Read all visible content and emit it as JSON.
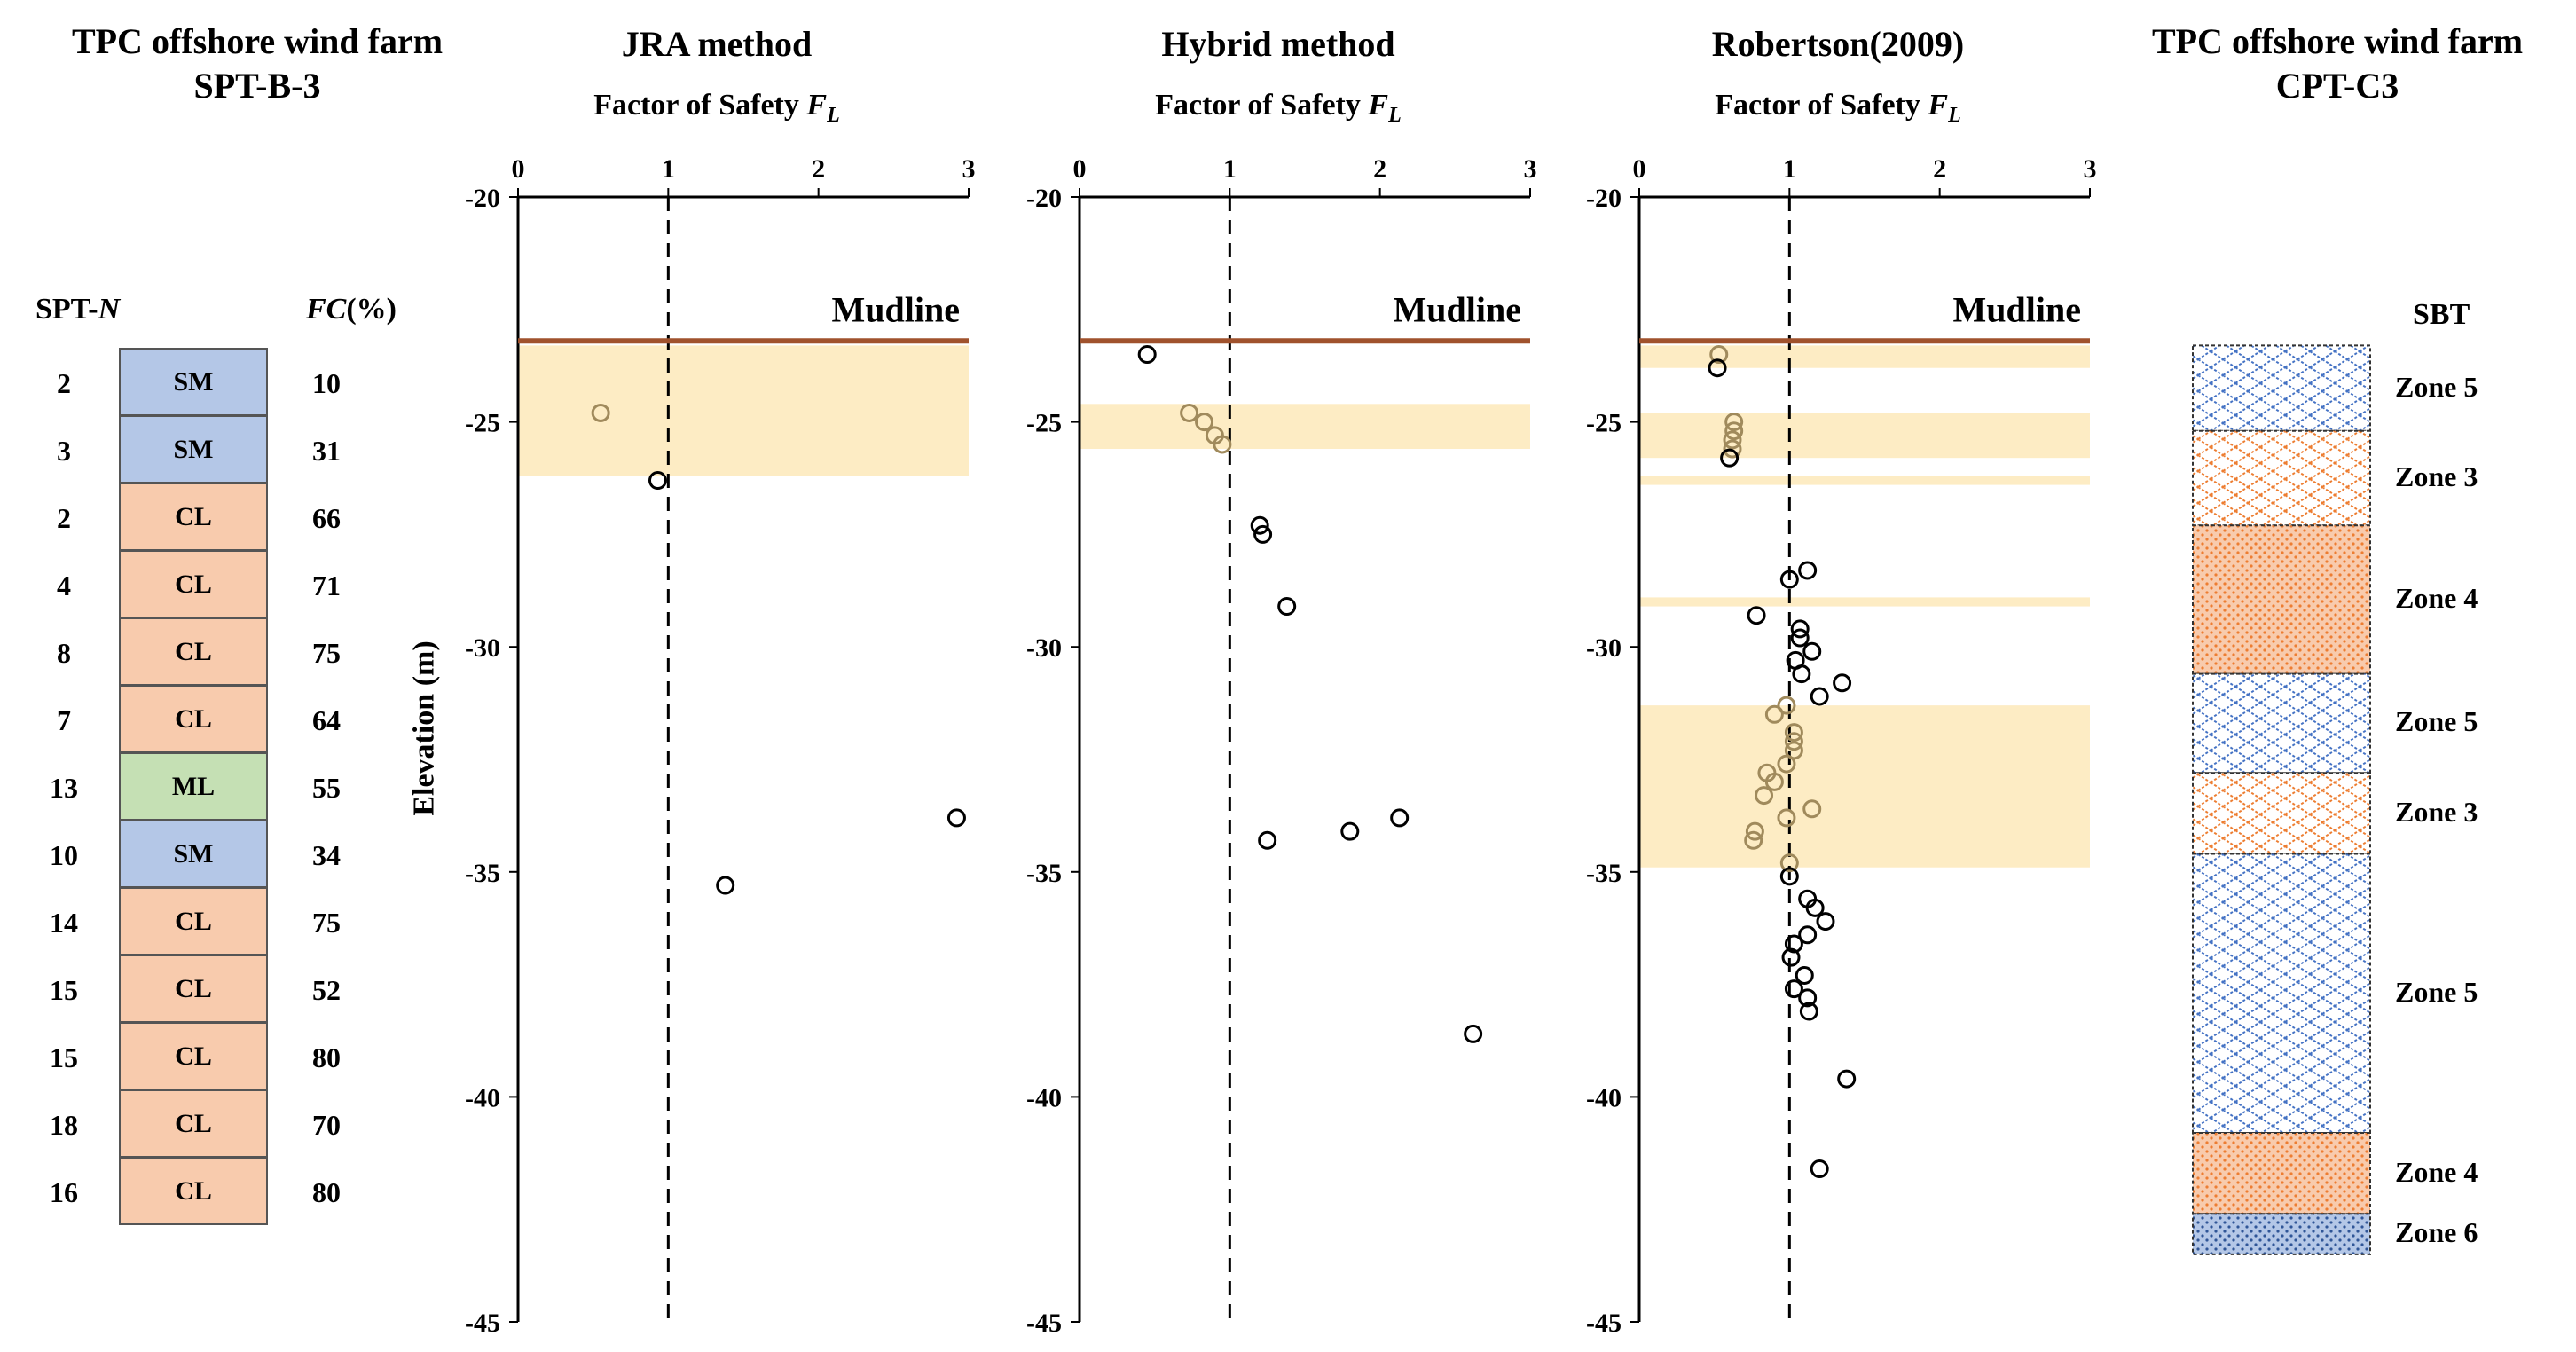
{
  "left_panel": {
    "title_line1": "TPC offshore wind farm",
    "title_line2": "SPT-B-3",
    "hdr_spt": "SPT-",
    "hdr_spt_n": "N",
    "hdr_fc": "FC",
    "hdr_fc_unit": "(%)",
    "rows": [
      {
        "n": "2",
        "soil": "SM",
        "fc": "10"
      },
      {
        "n": "3",
        "soil": "SM",
        "fc": "31"
      },
      {
        "n": "2",
        "soil": "CL",
        "fc": "66"
      },
      {
        "n": "4",
        "soil": "CL",
        "fc": "71"
      },
      {
        "n": "8",
        "soil": "CL",
        "fc": "75"
      },
      {
        "n": "7",
        "soil": "CL",
        "fc": "64"
      },
      {
        "n": "13",
        "soil": "ML",
        "fc": "55"
      },
      {
        "n": "10",
        "soil": "SM",
        "fc": "34"
      },
      {
        "n": "14",
        "soil": "CL",
        "fc": "75"
      },
      {
        "n": "15",
        "soil": "CL",
        "fc": "52"
      },
      {
        "n": "15",
        "soil": "CL",
        "fc": "80"
      },
      {
        "n": "18",
        "soil": "CL",
        "fc": "70"
      },
      {
        "n": "16",
        "soil": "CL",
        "fc": "80"
      }
    ],
    "soil_colors": {
      "SM": "#b4c7e7",
      "CL": "#f8cbad",
      "ML": "#c5e0b4"
    }
  },
  "right_panel": {
    "title_line1": "TPC offshore wind farm",
    "title_line2": "CPT-C3",
    "header": "SBT",
    "zones": [
      {
        "label": "Zone 5",
        "top": -23.3,
        "bottom": -25.2,
        "pattern": "brick-blue"
      },
      {
        "label": "Zone 3",
        "top": -25.2,
        "bottom": -27.3,
        "pattern": "brick-orange"
      },
      {
        "label": "Zone 4",
        "top": -27.3,
        "bottom": -30.6,
        "pattern": "dots-orange"
      },
      {
        "label": "Zone 5",
        "top": -30.6,
        "bottom": -32.8,
        "pattern": "brick-blue"
      },
      {
        "label": "Zone 3",
        "top": -32.8,
        "bottom": -34.6,
        "pattern": "brick-orange"
      },
      {
        "label": "Zone 5",
        "top": -34.6,
        "bottom": -40.8,
        "pattern": "brick-blue"
      },
      {
        "label": "Zone 4",
        "top": -40.8,
        "bottom": -42.6,
        "pattern": "dots-orange"
      },
      {
        "label": "Zone 6",
        "top": -42.6,
        "bottom": -43.5,
        "pattern": "dots-blue"
      }
    ]
  },
  "colors": {
    "mudline": "#a0522d",
    "band": "#fdecc4",
    "marker_dark": "#000000",
    "marker_light": "#a08a5c"
  },
  "y_axis_label": "Elevation (m)",
  "chart_data": [
    {
      "type": "scatter",
      "title": "JRA method",
      "xlabel_prefix": "Factor of Safety ",
      "xlabel_symbol": "F",
      "xlabel_sub": "L",
      "xlim": [
        0,
        3
      ],
      "ylim": [
        -45,
        -20
      ],
      "xticks": [
        "0",
        "1",
        "2",
        "3"
      ],
      "yticks": [
        "-20",
        "-25",
        "-30",
        "-35",
        "-40",
        "-45"
      ],
      "reference_x": 1,
      "mudline_y": -23.2,
      "mudline_label": "Mudline",
      "bands": [
        [
          -23.3,
          -26.2
        ]
      ],
      "points": [
        {
          "x": 0.55,
          "y": -24.8,
          "light": true
        },
        {
          "x": 0.93,
          "y": -26.3,
          "light": false
        },
        {
          "x": 2.92,
          "y": -33.8,
          "light": false
        },
        {
          "x": 1.38,
          "y": -35.3,
          "light": false
        }
      ]
    },
    {
      "type": "scatter",
      "title": "Hybrid method",
      "xlabel_prefix": "Factor of Safety ",
      "xlabel_symbol": "F",
      "xlabel_sub": "L",
      "xlim": [
        0,
        3
      ],
      "ylim": [
        -45,
        -20
      ],
      "xticks": [
        "0",
        "1",
        "2",
        "3"
      ],
      "yticks": [
        "-20",
        "-25",
        "-30",
        "-35",
        "-40",
        "-45"
      ],
      "reference_x": 1,
      "mudline_y": -23.2,
      "mudline_label": "Mudline",
      "bands": [
        [
          -24.6,
          -25.6
        ]
      ],
      "points": [
        {
          "x": 0.45,
          "y": -23.5,
          "light": false
        },
        {
          "x": 0.73,
          "y": -24.8,
          "light": true
        },
        {
          "x": 0.83,
          "y": -25.0,
          "light": true
        },
        {
          "x": 0.9,
          "y": -25.3,
          "light": true
        },
        {
          "x": 0.95,
          "y": -25.5,
          "light": true
        },
        {
          "x": 1.2,
          "y": -27.3,
          "light": false
        },
        {
          "x": 1.22,
          "y": -27.5,
          "light": false
        },
        {
          "x": 1.38,
          "y": -29.1,
          "light": false
        },
        {
          "x": 2.13,
          "y": -33.8,
          "light": false
        },
        {
          "x": 1.8,
          "y": -34.1,
          "light": false
        },
        {
          "x": 1.25,
          "y": -34.3,
          "light": false
        },
        {
          "x": 2.62,
          "y": -38.6,
          "light": false
        }
      ]
    },
    {
      "type": "scatter",
      "title": "Robertson(2009)",
      "xlabel_prefix": "Factor of Safety ",
      "xlabel_symbol": "F",
      "xlabel_sub": "L",
      "xlim": [
        0,
        3
      ],
      "ylim": [
        -45,
        -20
      ],
      "xticks": [
        "0",
        "1",
        "2",
        "3"
      ],
      "yticks": [
        "-20",
        "-25",
        "-30",
        "-35",
        "-40",
        "-45"
      ],
      "reference_x": 1,
      "mudline_y": -23.2,
      "mudline_label": "Mudline",
      "bands": [
        [
          -23.3,
          -23.8
        ],
        [
          -24.8,
          -25.8
        ],
        [
          -26.2,
          -26.4
        ],
        [
          -28.9,
          -29.1
        ],
        [
          -31.3,
          -34.9
        ]
      ],
      "points": [
        {
          "x": 0.53,
          "y": -23.5,
          "light": true
        },
        {
          "x": 0.52,
          "y": -23.8,
          "light": false
        },
        {
          "x": 0.63,
          "y": -25.0,
          "light": true
        },
        {
          "x": 0.63,
          "y": -25.2,
          "light": true
        },
        {
          "x": 0.62,
          "y": -25.4,
          "light": true
        },
        {
          "x": 0.62,
          "y": -25.6,
          "light": true
        },
        {
          "x": 0.6,
          "y": -25.8,
          "light": false
        },
        {
          "x": 1.12,
          "y": -28.3,
          "light": false
        },
        {
          "x": 1.0,
          "y": -28.5,
          "light": false
        },
        {
          "x": 0.78,
          "y": -29.3,
          "light": false
        },
        {
          "x": 1.07,
          "y": -29.6,
          "light": false
        },
        {
          "x": 1.07,
          "y": -29.8,
          "light": false
        },
        {
          "x": 1.15,
          "y": -30.1,
          "light": false
        },
        {
          "x": 1.04,
          "y": -30.3,
          "light": false
        },
        {
          "x": 1.08,
          "y": -30.6,
          "light": false
        },
        {
          "x": 1.35,
          "y": -30.8,
          "light": false
        },
        {
          "x": 1.2,
          "y": -31.1,
          "light": false
        },
        {
          "x": 0.98,
          "y": -31.3,
          "light": true
        },
        {
          "x": 0.9,
          "y": -31.5,
          "light": true
        },
        {
          "x": 1.03,
          "y": -31.9,
          "light": true
        },
        {
          "x": 1.03,
          "y": -32.1,
          "light": true
        },
        {
          "x": 1.03,
          "y": -32.3,
          "light": true
        },
        {
          "x": 0.98,
          "y": -32.6,
          "light": true
        },
        {
          "x": 0.85,
          "y": -32.8,
          "light": true
        },
        {
          "x": 0.9,
          "y": -33.0,
          "light": true
        },
        {
          "x": 0.83,
          "y": -33.3,
          "light": true
        },
        {
          "x": 1.15,
          "y": -33.6,
          "light": true
        },
        {
          "x": 0.98,
          "y": -33.8,
          "light": true
        },
        {
          "x": 0.77,
          "y": -34.1,
          "light": true
        },
        {
          "x": 0.76,
          "y": -34.3,
          "light": true
        },
        {
          "x": 1.0,
          "y": -34.8,
          "light": true
        },
        {
          "x": 1.0,
          "y": -35.1,
          "light": false
        },
        {
          "x": 1.12,
          "y": -35.6,
          "light": false
        },
        {
          "x": 1.17,
          "y": -35.8,
          "light": false
        },
        {
          "x": 1.24,
          "y": -36.1,
          "light": false
        },
        {
          "x": 1.12,
          "y": -36.4,
          "light": false
        },
        {
          "x": 1.03,
          "y": -36.6,
          "light": false
        },
        {
          "x": 1.01,
          "y": -36.9,
          "light": false
        },
        {
          "x": 1.1,
          "y": -37.3,
          "light": false
        },
        {
          "x": 1.03,
          "y": -37.6,
          "light": false
        },
        {
          "x": 1.12,
          "y": -37.8,
          "light": false
        },
        {
          "x": 1.13,
          "y": -38.1,
          "light": false
        },
        {
          "x": 1.38,
          "y": -39.6,
          "light": false
        },
        {
          "x": 1.2,
          "y": -41.6,
          "light": false
        }
      ]
    }
  ]
}
